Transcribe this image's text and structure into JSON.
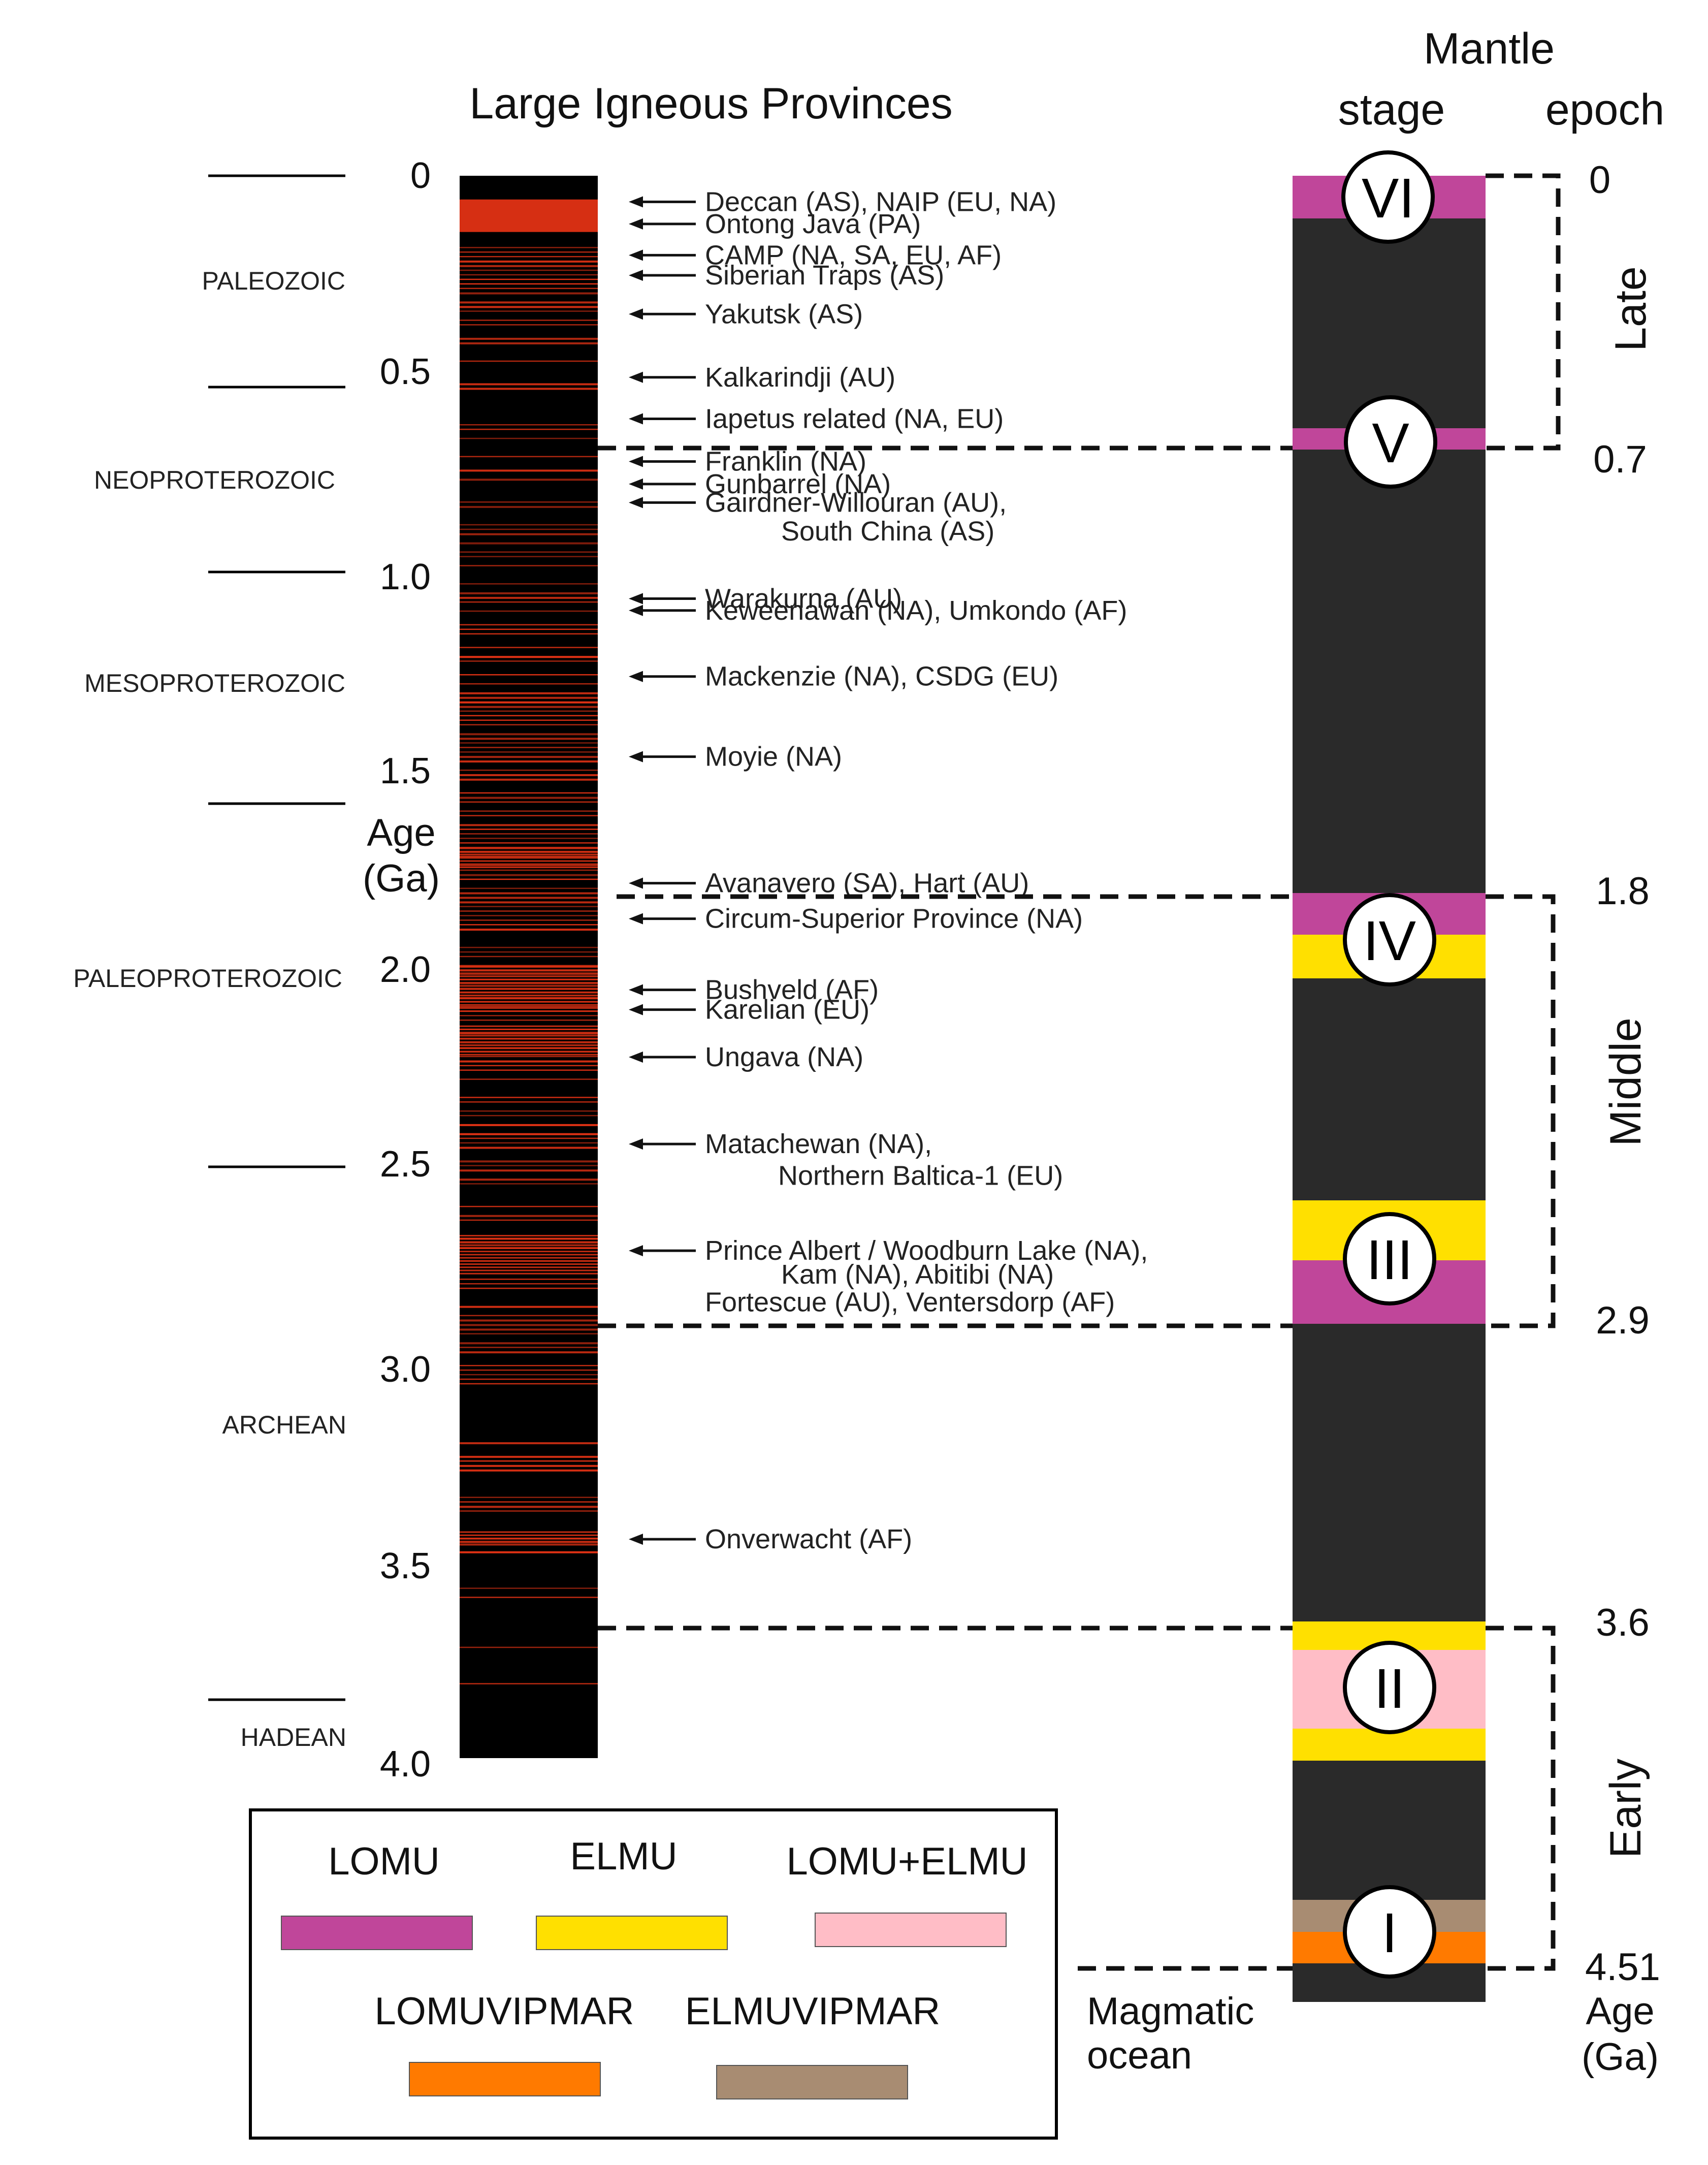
{
  "title": "Large Igneous Provinces",
  "left_axis": {
    "ticks": [
      "0",
      "0.5",
      "1.0",
      "1.5",
      "2.0",
      "2.5",
      "3.0",
      "3.5",
      "4.0"
    ],
    "label_line1": "Age",
    "label_line2": "(Ga)"
  },
  "eras": [
    "PALEOZOIC",
    "NEOPROTEROZOIC",
    "MESOPROTEROZOIC",
    "PALEOPROTEROZOIC",
    "ARCHEAN",
    "HADEAN"
  ],
  "lip_events": [
    {
      "age": 0.066,
      "label": "Deccan (AS), NAIP (EU, NA)"
    },
    {
      "age": 0.122,
      "label": "Ontong Java (PA)"
    },
    {
      "age": 0.201,
      "label": "CAMP (NA, SA, EU, AF)"
    },
    {
      "age": 0.252,
      "label": "Siberian Traps (AS)"
    },
    {
      "age": 0.35,
      "label": "Yakutsk (AS)"
    },
    {
      "age": 0.51,
      "label": "Kalkarindji (AU)"
    },
    {
      "age": 0.615,
      "label": "Iapetus related (NA, EU)"
    },
    {
      "age": 0.723,
      "label": "Franklin (NA)"
    },
    {
      "age": 0.78,
      "label": "Gunbarrel (NA)"
    },
    {
      "age": 0.827,
      "label": "Gairdner-Willouran (AU),"
    },
    {
      "age": 0.9,
      "label": "South China (AS)"
    },
    {
      "age": 1.07,
      "label": "Warakurna (AU)"
    },
    {
      "age": 1.1,
      "label": "Keweenawan (NA), Umkondo (AF)"
    },
    {
      "age": 1.267,
      "label": "Mackenzie (NA), CSDG (EU)"
    },
    {
      "age": 1.47,
      "label": "Moyie (NA)"
    },
    {
      "age": 1.79,
      "label": "Avanavero (SA), Hart (AU)"
    },
    {
      "age": 1.88,
      "label": "Circum-Superior Province (NA)"
    },
    {
      "age": 2.06,
      "label": "Bushveld (AF)"
    },
    {
      "age": 2.11,
      "label": "Karelian (EU)"
    },
    {
      "age": 2.23,
      "label": "Ungava (NA)"
    },
    {
      "age": 2.45,
      "label": "Matachewan (NA),"
    },
    {
      "age": 2.53,
      "label": "Northern Baltica-1 (EU)"
    },
    {
      "age": 2.72,
      "label": "Prince Albert / Woodburn Lake (NA),"
    },
    {
      "age": 2.78,
      "label": "Kam (NA), Abitibi (NA)"
    },
    {
      "age": 2.85,
      "label": "Fortescue (AU), Ventersdorp (AF)"
    },
    {
      "age": 3.45,
      "label": "Onverwacht (AF)"
    }
  ],
  "right_header": {
    "line1": "Mantle",
    "stage": "stage",
    "epoch": "epoch"
  },
  "stages": [
    {
      "numeral": "VI",
      "age": 0.0
    },
    {
      "numeral": "V",
      "age": 0.7
    },
    {
      "numeral": "IV",
      "age": 1.9
    },
    {
      "numeral": "III",
      "age": 2.75
    },
    {
      "numeral": "II",
      "age": 3.8
    },
    {
      "numeral": "I",
      "age": 4.45
    }
  ],
  "epochs": [
    {
      "name": "Late",
      "start": "0",
      "end": "0.7"
    },
    {
      "name": "Middle",
      "start": "1.8",
      "end": "2.9"
    },
    {
      "name": "Early",
      "start": "3.6",
      "end": "4.51"
    }
  ],
  "right_axis_label_line1": "Age",
  "right_axis_label_line2": "(Ga)",
  "magmatic_ocean_line1": "Magmatic",
  "magmatic_ocean_line2": "ocean",
  "legend": [
    {
      "label": "LOMU",
      "color": "#c0469a"
    },
    {
      "label": "ELMU",
      "color": "#ffe000"
    },
    {
      "label": "LOMU+ELMU",
      "color": "#ffbdc6"
    },
    {
      "label": "LOMUVIPMAR",
      "color": "#ff7a00"
    },
    {
      "label": "ELMUVIPMAR",
      "color": "#a88c72"
    }
  ],
  "colors": {
    "lip_line": "#e23214",
    "column_dark": "#2a2a2a",
    "lip_bg": "#000000"
  }
}
